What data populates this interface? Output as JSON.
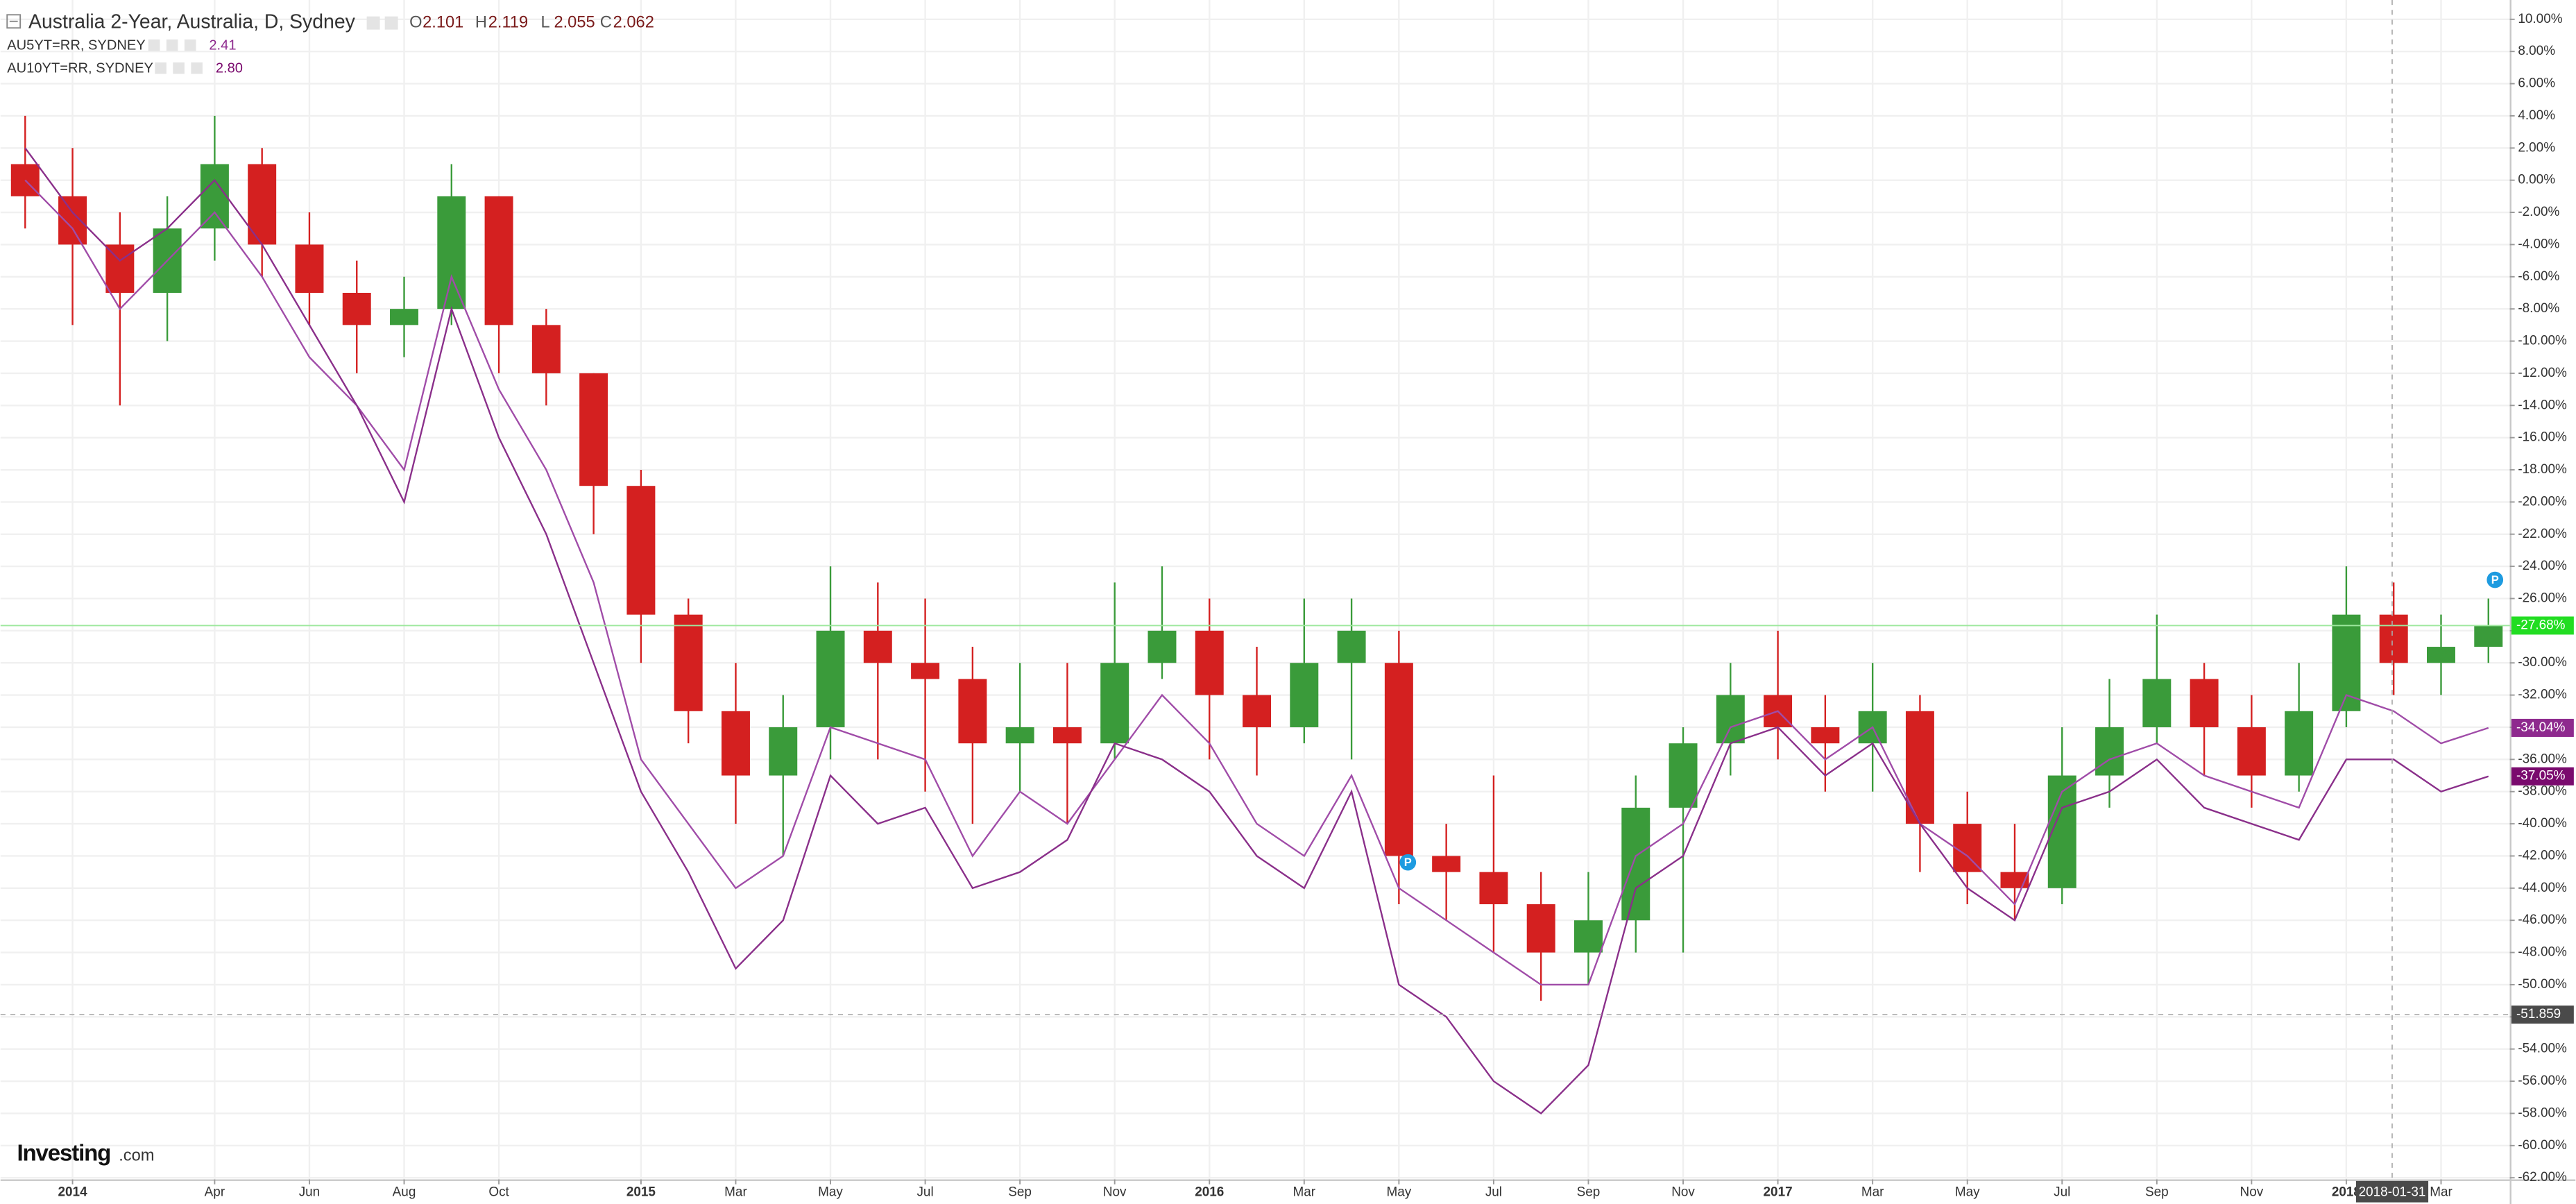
{
  "chart_data": {
    "type": "candlestick",
    "x": [
      "2013-12",
      "2014-01",
      "2014-02",
      "2014-03",
      "2014-04",
      "2014-05",
      "2014-06",
      "2014-07",
      "2014-08",
      "2014-09",
      "2014-10",
      "2014-11",
      "2014-12",
      "2015-01",
      "2015-02",
      "2015-03",
      "2015-04",
      "2015-05",
      "2015-06",
      "2015-07",
      "2015-08",
      "2015-09",
      "2015-10",
      "2015-11",
      "2015-12",
      "2016-01",
      "2016-02",
      "2016-03",
      "2016-04",
      "2016-05",
      "2016-06",
      "2016-07",
      "2016-08",
      "2016-09",
      "2016-10",
      "2016-11",
      "2016-12",
      "2017-01",
      "2017-02",
      "2017-03",
      "2017-04",
      "2017-05",
      "2017-06",
      "2017-07",
      "2017-08",
      "2017-09",
      "2017-10",
      "2017-11",
      "2017-12",
      "2018-01",
      "2018-02",
      "2018-03",
      "2018-04"
    ],
    "xlim": [
      "2013-12",
      "2018-04"
    ],
    "xticks": [
      {
        "value": "2014-01",
        "label": "2014"
      },
      {
        "value": "2014-04",
        "label": "Apr"
      },
      {
        "value": "2014-06",
        "label": "Jun"
      },
      {
        "value": "2014-08",
        "label": "Aug"
      },
      {
        "value": "2014-10",
        "label": "Oct"
      },
      {
        "value": "2015-01",
        "label": "2015"
      },
      {
        "value": "2015-03",
        "label": "Mar"
      },
      {
        "value": "2015-05",
        "label": "May"
      },
      {
        "value": "2015-07",
        "label": "Jul"
      },
      {
        "value": "2015-09",
        "label": "Sep"
      },
      {
        "value": "2015-11",
        "label": "Nov"
      },
      {
        "value": "2016-01",
        "label": "2016"
      },
      {
        "value": "2016-03",
        "label": "Mar"
      },
      {
        "value": "2016-05",
        "label": "May"
      },
      {
        "value": "2016-07",
        "label": "Jul"
      },
      {
        "value": "2016-09",
        "label": "Sep"
      },
      {
        "value": "2016-11",
        "label": "Nov"
      },
      {
        "value": "2017-01",
        "label": "2017"
      },
      {
        "value": "2017-03",
        "label": "Mar"
      },
      {
        "value": "2017-05",
        "label": "May"
      },
      {
        "value": "2017-07",
        "label": "Jul"
      },
      {
        "value": "2017-09",
        "label": "Sep"
      },
      {
        "value": "2017-11",
        "label": "Nov"
      },
      {
        "value": "2018-01",
        "label": "2018"
      },
      {
        "value": "2018-03",
        "label": "Mar"
      }
    ],
    "ylim": [
      -62.1,
      11.2
    ],
    "yticks": [
      {
        "value": 10,
        "label": "10.00%"
      },
      {
        "value": 8,
        "label": "8.00%"
      },
      {
        "value": 6,
        "label": "6.00%"
      },
      {
        "value": 4,
        "label": "4.00%"
      },
      {
        "value": 2,
        "label": "2.00%"
      },
      {
        "value": 0,
        "label": "0.00%"
      },
      {
        "value": -2,
        "label": "-2.00%"
      },
      {
        "value": -4,
        "label": "-4.00%"
      },
      {
        "value": -6,
        "label": "-6.00%"
      },
      {
        "value": -8,
        "label": "-8.00%"
      },
      {
        "value": -10,
        "label": "-10.00%"
      },
      {
        "value": -12,
        "label": "-12.00%"
      },
      {
        "value": -14,
        "label": "-14.00%"
      },
      {
        "value": -16,
        "label": "-16.00%"
      },
      {
        "value": -18,
        "label": "-18.00%"
      },
      {
        "value": -20,
        "label": "-20.00%"
      },
      {
        "value": -22,
        "label": "-22.00%"
      },
      {
        "value": -24,
        "label": "-24.00%"
      },
      {
        "value": -26,
        "label": "-26.00%"
      },
      {
        "value": -28,
        "label": "-28.00%"
      },
      {
        "value": -30,
        "label": "-30.00%"
      },
      {
        "value": -32,
        "label": "-32.00%"
      },
      {
        "value": -34,
        "label": "-34.00%"
      },
      {
        "value": -36,
        "label": "-36.00%"
      },
      {
        "value": -38,
        "label": "-38.00%"
      },
      {
        "value": -40,
        "label": "-40.00%"
      },
      {
        "value": -42,
        "label": "-42.00%"
      },
      {
        "value": -44,
        "label": "-44.00%"
      },
      {
        "value": -46,
        "label": "-46.00%"
      },
      {
        "value": -48,
        "label": "-48.00%"
      },
      {
        "value": -50,
        "label": "-50.00%"
      },
      {
        "value": -52,
        "label": "-52.00%"
      },
      {
        "value": -54,
        "label": "-54.00%"
      },
      {
        "value": -56,
        "label": "-56.00%"
      },
      {
        "value": -58,
        "label": "-58.00%"
      },
      {
        "value": -60,
        "label": "-60.00%"
      },
      {
        "value": -62,
        "label": "-62.00%"
      }
    ],
    "grid": true,
    "series": [
      {
        "name": "Australia 2-Year, Australia, D, Sydney",
        "type": "candlestick",
        "up_color": "#3a9b3a",
        "down_color": "#d42020",
        "tag_color": "#22dd22",
        "ohlc_legend": [
          {
            "key": "O",
            "value": "2.101"
          },
          {
            "key": "H",
            "value": "2.119"
          },
          {
            "key": "L",
            "value": "2.055"
          },
          {
            "key": "C",
            "value": "2.062"
          }
        ],
        "open": [
          1,
          -1,
          -4,
          -7,
          -3,
          1,
          -4,
          -7,
          -9,
          -8,
          -1,
          -9,
          -12,
          -19,
          -27,
          -33,
          -37,
          -34,
          -28,
          -30,
          -31,
          -35,
          -34,
          -35,
          -30,
          -28,
          -32,
          -34,
          -30,
          -30,
          -42,
          -43,
          -45,
          -48,
          -46,
          -39,
          -35,
          -32,
          -34,
          -35,
          -33,
          -40,
          -43,
          -44,
          -37,
          -34,
          -31,
          -34,
          -37,
          -33,
          -27,
          -30,
          -29
        ],
        "high": [
          4,
          2,
          -2,
          -1,
          4,
          2,
          -2,
          -5,
          -6,
          1,
          -1,
          -8,
          -12,
          -18,
          -26,
          -30,
          -32,
          -24,
          -25,
          -26,
          -29,
          -30,
          -30,
          -25,
          -24,
          -26,
          -29,
          -26,
          -26,
          -28,
          -40,
          -37,
          -43,
          -43,
          -37,
          -34,
          -30,
          -28,
          -32,
          -30,
          -32,
          -38,
          -40,
          -34,
          -31,
          -27,
          -30,
          -32,
          -30,
          -24,
          -25,
          -27,
          -26
        ],
        "low": [
          -3,
          -9,
          -14,
          -10,
          -5,
          -6,
          -9,
          -12,
          -11,
          -9,
          -12,
          -14,
          -22,
          -30,
          -35,
          -40,
          -42,
          -36,
          -36,
          -38,
          -40,
          -38,
          -40,
          -36,
          -31,
          -36,
          -37,
          -35,
          -36,
          -45,
          -46,
          -48,
          -51,
          -50,
          -48,
          -48,
          -37,
          -36,
          -38,
          -38,
          -43,
          -45,
          -46,
          -45,
          -39,
          -35,
          -37,
          -39,
          -38,
          -34,
          -32,
          -32,
          -30
        ],
        "close": [
          -1,
          -4,
          -7,
          -3,
          1,
          -4,
          -7,
          -9,
          -8,
          -1,
          -9,
          -12,
          -19,
          -27,
          -33,
          -37,
          -34,
          -28,
          -30,
          -31,
          -35,
          -34,
          -35,
          -30,
          -28,
          -32,
          -34,
          -30,
          -28,
          -42,
          -43,
          -45,
          -48,
          -46,
          -39,
          -35,
          -32,
          -34,
          -35,
          -33,
          -40,
          -43,
          -44,
          -37,
          -34,
          -31,
          -34,
          -37,
          -33,
          -27,
          -30,
          -29,
          -27.68
        ],
        "last_label": "-27.68%"
      },
      {
        "name": "AU5YT=RR, SYDNEY",
        "type": "line",
        "color": "#a04ca8",
        "tag_color": "#8e2a8e",
        "legend_value": "2.41",
        "values": [
          0,
          -3,
          -8,
          -5,
          -2,
          -6,
          -11,
          -14,
          -18,
          -6,
          -13,
          -18,
          -25,
          -36,
          -40,
          -44,
          -42,
          -34,
          -35,
          -36,
          -42,
          -38,
          -40,
          -36,
          -32,
          -35,
          -40,
          -42,
          -37,
          -44,
          -46,
          -48,
          -50,
          -50,
          -42,
          -40,
          -34,
          -33,
          -36,
          -34,
          -40,
          -42,
          -45,
          -38,
          -36,
          -35,
          -37,
          -38,
          -39,
          -32,
          -33,
          -35,
          -34.04
        ],
        "last_label": "-34.04%"
      },
      {
        "name": "AU10YT=RR, SYDNEY",
        "type": "line",
        "color": "#8a2f8a",
        "tag_color": "#7a0a6e",
        "legend_value": "2.80",
        "values": [
          2,
          -2,
          -5,
          -3,
          0,
          -4,
          -9,
          -14,
          -20,
          -8,
          -16,
          -22,
          -30,
          -38,
          -43,
          -49,
          -46,
          -37,
          -40,
          -39,
          -44,
          -43,
          -41,
          -35,
          -36,
          -38,
          -42,
          -44,
          -38,
          -50,
          -52,
          -56,
          -58,
          -55,
          -44,
          -42,
          -35,
          -34,
          -37,
          -35,
          -40,
          -44,
          -46,
          -39,
          -38,
          -36,
          -39,
          -40,
          -41,
          -36,
          -36,
          -38,
          -37.05
        ],
        "last_label": "-37.05%"
      }
    ],
    "crosshair": {
      "x_label": "2018-01-31",
      "y": -51.859
    },
    "logo": {
      "brand": "Investing",
      "suffix": ".com"
    }
  }
}
